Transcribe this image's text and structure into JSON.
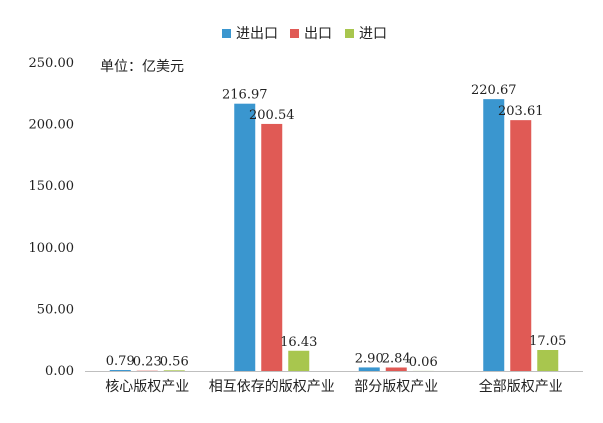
{
  "chart_data": {
    "type": "bar",
    "unit_note": "单位：亿美元",
    "categories": [
      "核心版权产业",
      "相互依存的版权产业",
      "部分版权产业",
      "全部版权产业"
    ],
    "series": [
      {
        "name": "进出口",
        "color": "#3a96cf",
        "values": [
          0.79,
          216.97,
          2.9,
          220.67
        ],
        "labels": [
          "0.79",
          "216.97",
          "2.90",
          "220.67"
        ]
      },
      {
        "name": "出口",
        "color": "#e05a55",
        "values": [
          0.23,
          200.54,
          2.84,
          203.61
        ],
        "labels": [
          "0.23",
          "200.54",
          "2.84",
          "203.61"
        ]
      },
      {
        "name": "进口",
        "color": "#a8c64e",
        "values": [
          0.56,
          16.43,
          0.06,
          17.05
        ],
        "labels": [
          "0.56",
          "16.43",
          "0.06",
          "17.05"
        ]
      }
    ],
    "yticks": [
      "0.00",
      "50.00",
      "100.00",
      "150.00",
      "200.00",
      "250.00"
    ],
    "ylim": [
      0,
      250
    ],
    "legend_position": "top-center",
    "grid": false
  }
}
